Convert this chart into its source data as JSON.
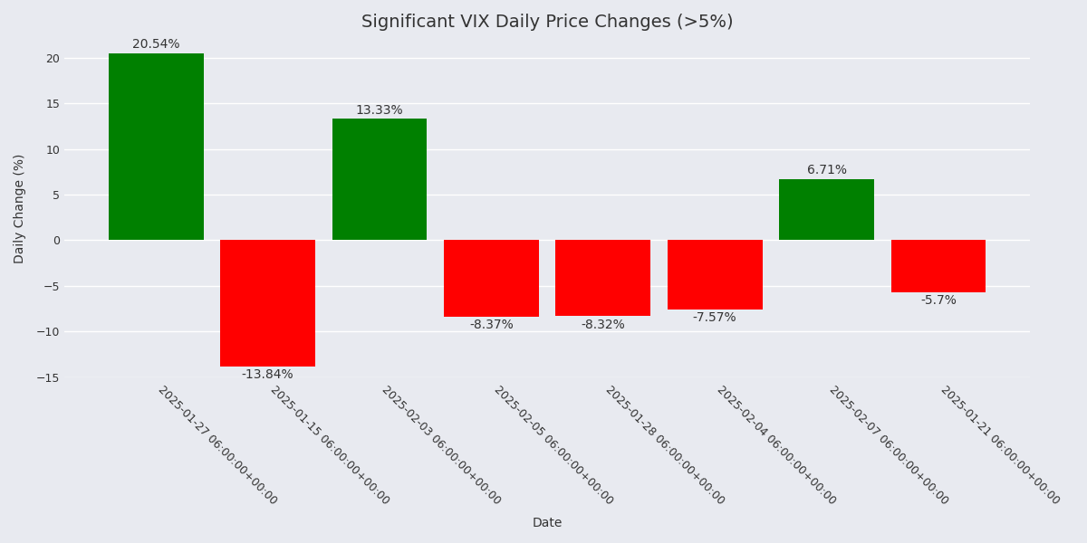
{
  "title": "Significant VIX Daily Price Changes (>5%)",
  "xlabel": "Date",
  "ylabel": "Daily Change (%)",
  "categories": [
    "2025-01-27 06:00:00+00:00",
    "2025-01-15 06:00:00+00:00",
    "2025-02-03 06:00:00+00:00",
    "2025-02-05 06:00:00+00:00",
    "2025-01-28 06:00:00+00:00",
    "2025-02-04 06:00:00+00:00",
    "2025-02-07 06:00:00+00:00",
    "2025-01-21 06:00:00+00:00"
  ],
  "values": [
    20.54,
    -13.84,
    13.33,
    -8.37,
    -8.32,
    -7.57,
    6.71,
    -5.7
  ],
  "bar_colors": [
    "#008000",
    "#ff0000",
    "#008000",
    "#ff0000",
    "#ff0000",
    "#ff0000",
    "#008000",
    "#ff0000"
  ],
  "label_values": [
    "20.54%",
    "-13.84%",
    "13.33%",
    "-8.37%",
    "-8.32%",
    "-7.57%",
    "6.71%",
    "-5.7%"
  ],
  "ylim": [
    -15,
    22
  ],
  "background_color": "#e8eaf0",
  "grid_color": "#ffffff",
  "title_fontsize": 14,
  "label_fontsize": 10,
  "tick_fontsize": 9,
  "bar_width": 0.85
}
